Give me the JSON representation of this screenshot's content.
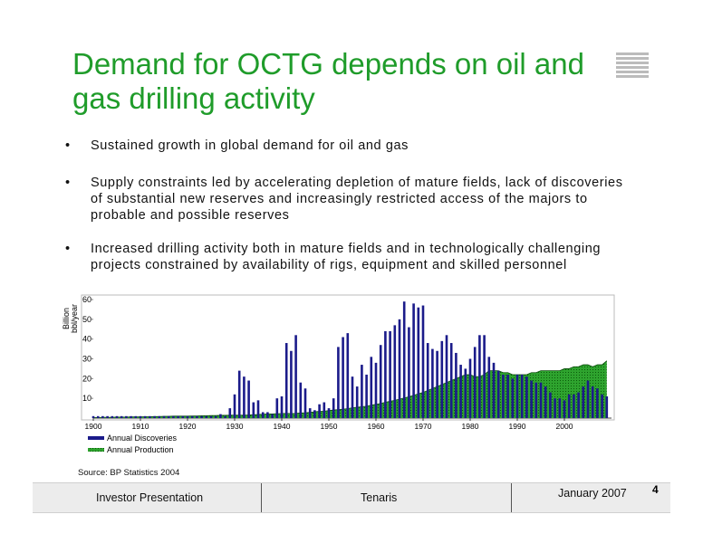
{
  "title": "Demand for OCTG depends on oil and gas drilling activity",
  "bullets": [
    "Sustained growth in global demand for oil and gas",
    "Supply constraints led by accelerating depletion of mature fields, lack of discoveries of substantial new reserves and increasingly restricted access of the majors to probable and possible reserves",
    "Increased drilling activity both in mature fields and in technologically challenging projects constrained by availability of rigs, equipment and skilled personnel"
  ],
  "bullet_symbol": "•",
  "chart_data": {
    "type": "bar-area",
    "ylabel": [
      "Billion",
      "bbl/year"
    ],
    "x": [
      1900,
      1901,
      1902,
      1903,
      1904,
      1905,
      1906,
      1907,
      1908,
      1909,
      1910,
      1911,
      1912,
      1913,
      1914,
      1915,
      1916,
      1917,
      1918,
      1919,
      1920,
      1921,
      1922,
      1923,
      1924,
      1925,
      1926,
      1927,
      1928,
      1929,
      1930,
      1931,
      1932,
      1933,
      1934,
      1935,
      1936,
      1937,
      1938,
      1939,
      1940,
      1941,
      1942,
      1943,
      1944,
      1945,
      1946,
      1947,
      1948,
      1949,
      1950,
      1951,
      1952,
      1953,
      1954,
      1955,
      1956,
      1957,
      1958,
      1959,
      1960,
      1961,
      1962,
      1963,
      1964,
      1965,
      1966,
      1967,
      1968,
      1969,
      1970,
      1971,
      1972,
      1973,
      1974,
      1975,
      1976,
      1977,
      1978,
      1979,
      1980,
      1981,
      1982,
      1983,
      1984,
      1985,
      1986,
      1987,
      1988,
      1989,
      1990,
      1991,
      1992,
      1993,
      1994,
      1995,
      1996,
      1997,
      1998,
      1999,
      2000,
      2001,
      2002,
      2003,
      2004,
      2005,
      2006,
      2007,
      2008,
      2009
    ],
    "series": [
      {
        "name": "Annual Discoveries",
        "color": "#1b1b8a",
        "kind": "bar",
        "values": [
          1,
          1,
          1,
          1,
          1,
          1,
          1,
          1,
          1,
          1,
          1,
          1,
          1,
          1,
          1,
          1,
          1,
          1,
          1,
          1,
          1,
          1,
          1,
          1,
          1,
          1,
          1,
          2,
          1,
          5,
          12,
          24,
          21,
          19,
          8,
          9,
          3,
          3,
          2,
          10,
          11,
          38,
          34,
          42,
          18,
          15,
          5,
          4,
          7,
          8,
          5,
          10,
          36,
          41,
          43,
          21,
          16,
          27,
          22,
          31,
          28,
          37,
          44,
          44,
          47,
          50,
          59,
          46,
          58,
          56,
          57,
          38,
          35,
          34,
          39,
          42,
          38,
          33,
          27,
          25,
          30,
          36,
          42,
          42,
          31,
          28,
          24,
          22,
          22,
          20,
          22,
          22,
          21,
          19,
          18,
          18,
          16,
          13,
          10,
          10,
          9,
          12,
          12,
          13,
          16,
          19,
          16,
          15,
          12,
          11
        ]
      },
      {
        "name": "Annual Production",
        "color": "#2ea32e",
        "kind": "area",
        "values": [
          0.3,
          0.3,
          0.4,
          0.4,
          0.4,
          0.5,
          0.5,
          0.5,
          0.6,
          0.6,
          0.6,
          0.7,
          0.7,
          0.8,
          0.8,
          0.9,
          0.9,
          1,
          1,
          1,
          1,
          1.1,
          1.1,
          1.2,
          1.2,
          1.3,
          1.3,
          1.4,
          1.4,
          1.5,
          1.5,
          1.5,
          1.5,
          1.6,
          1.7,
          1.8,
          2,
          2.1,
          2.1,
          2.2,
          2.3,
          2.4,
          2.3,
          2.4,
          2.6,
          2.7,
          2.9,
          3.2,
          3.4,
          3.5,
          3.8,
          4.1,
          4.3,
          4.5,
          4.8,
          5.2,
          5.5,
          5.8,
          6,
          6.5,
          7,
          7.4,
          8,
          8.5,
          9,
          9.6,
          10.2,
          10.8,
          11.5,
          12.3,
          13,
          14,
          15,
          16,
          17,
          18,
          19,
          20,
          21,
          22,
          22,
          21,
          21,
          22,
          24,
          24,
          24,
          23,
          23,
          22,
          22,
          22,
          22,
          23,
          23,
          24,
          24,
          24,
          24,
          24,
          25,
          25,
          26,
          26,
          27,
          27,
          26,
          27,
          27,
          29
        ]
      }
    ],
    "xlim": [
      1900,
      2010
    ],
    "xticks": [
      1900,
      1910,
      1920,
      1930,
      1940,
      1950,
      1960,
      1970,
      1980,
      1990,
      2000
    ],
    "ylim": [
      0,
      60
    ],
    "yticks": [
      10,
      20,
      30,
      40,
      50,
      60
    ],
    "legend": "bottom-left"
  },
  "source": "Source:  BP Statistics 2004",
  "footer": {
    "left": "Investor Presentation",
    "center": "Tenaris",
    "right": "January  2007"
  },
  "page_number": "4"
}
